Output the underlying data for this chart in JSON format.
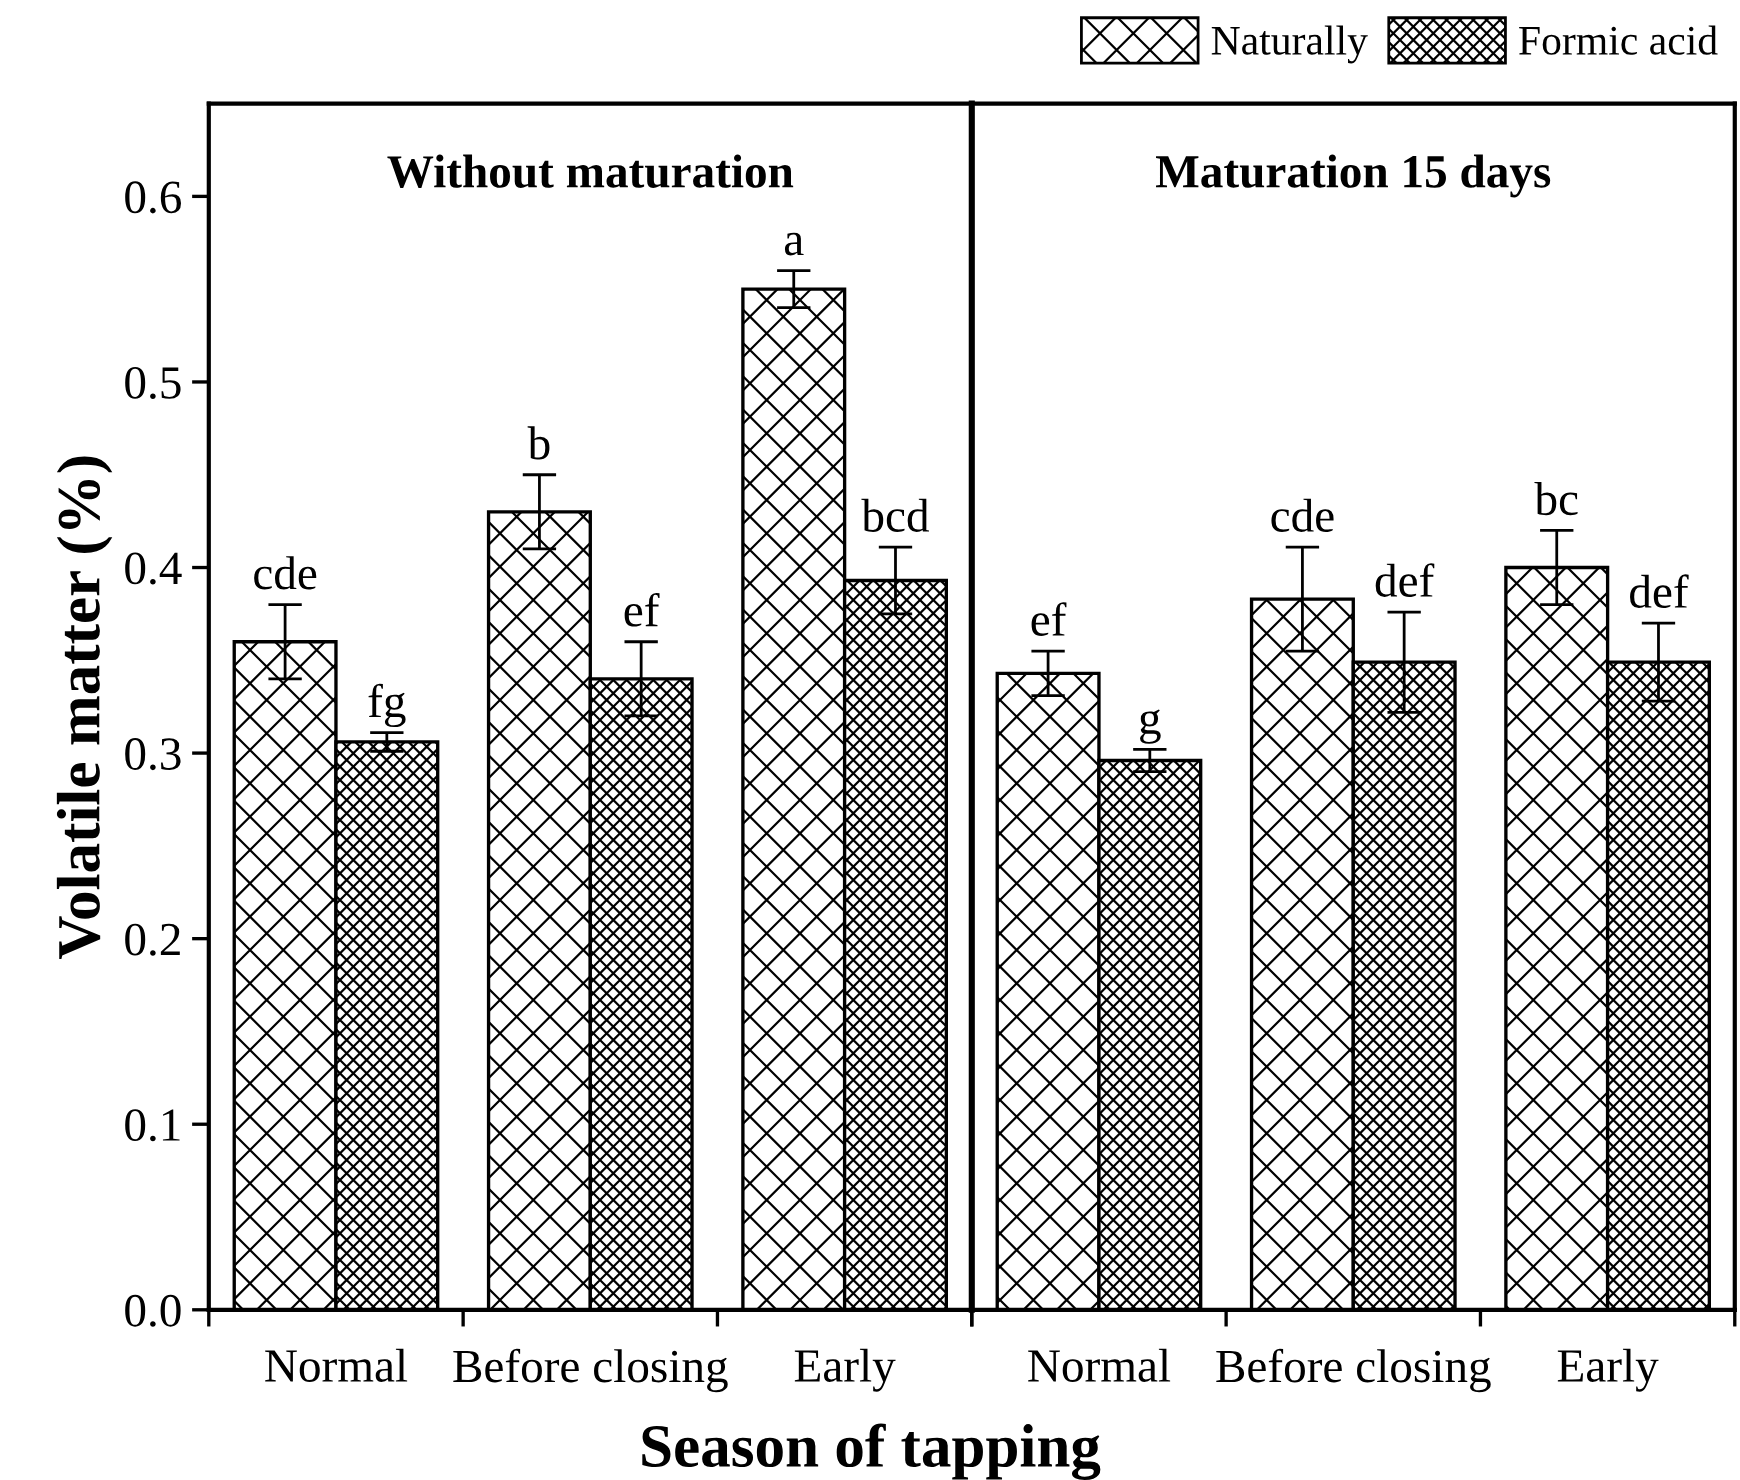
{
  "chart_data": [
    {
      "type": "bar",
      "title": "Without maturation",
      "ylabel": "Volatile matter (%)",
      "xlabel": "Season of tapping",
      "categories": [
        "Normal",
        "Before closing",
        "Early"
      ],
      "ylim": [
        0,
        0.65
      ],
      "yticks": [
        {
          "value": 0,
          "label": "0.0"
        },
        0.1,
        0.2,
        0.3,
        0.4,
        0.5,
        0.6
      ],
      "grid": false,
      "series": [
        {
          "color": "#000000",
          "values": [
            0.36,
            0.43,
            0.55
          ],
          "errors": [
            0.02,
            0.02,
            0.01
          ],
          "value_labels": [
            "cde",
            "b",
            "a"
          ]
        },
        {
          "color": "#000000",
          "values": [
            0.306,
            0.34,
            0.393
          ],
          "errors": [
            0.005,
            0.02,
            0.018
          ],
          "value_labels": [
            "fg",
            "ef",
            "bcd"
          ]
        }
      ]
    },
    {
      "type": "bar",
      "title": "Maturation 15 days",
      "categories": [
        "Normal",
        "Before closing",
        "Early"
      ],
      "ylim": [
        0,
        0.65
      ],
      "tick_labels": "x",
      "grid": false,
      "legend": "top right",
      "series": [
        {
          "name": "Naturally",
          "color": "#000000",
          "values": [
            0.343,
            0.383,
            0.4
          ],
          "errors": [
            0.012,
            0.028,
            0.02
          ],
          "value_labels": [
            "ef",
            "cde",
            "bc"
          ]
        },
        {
          "name": "Formic acid",
          "color": "#000000",
          "values": [
            0.296,
            0.349,
            0.349
          ],
          "errors": [
            0.006,
            0.027,
            0.021
          ],
          "value_labels": [
            "g",
            "def",
            "def"
          ]
        }
      ]
    }
  ]
}
